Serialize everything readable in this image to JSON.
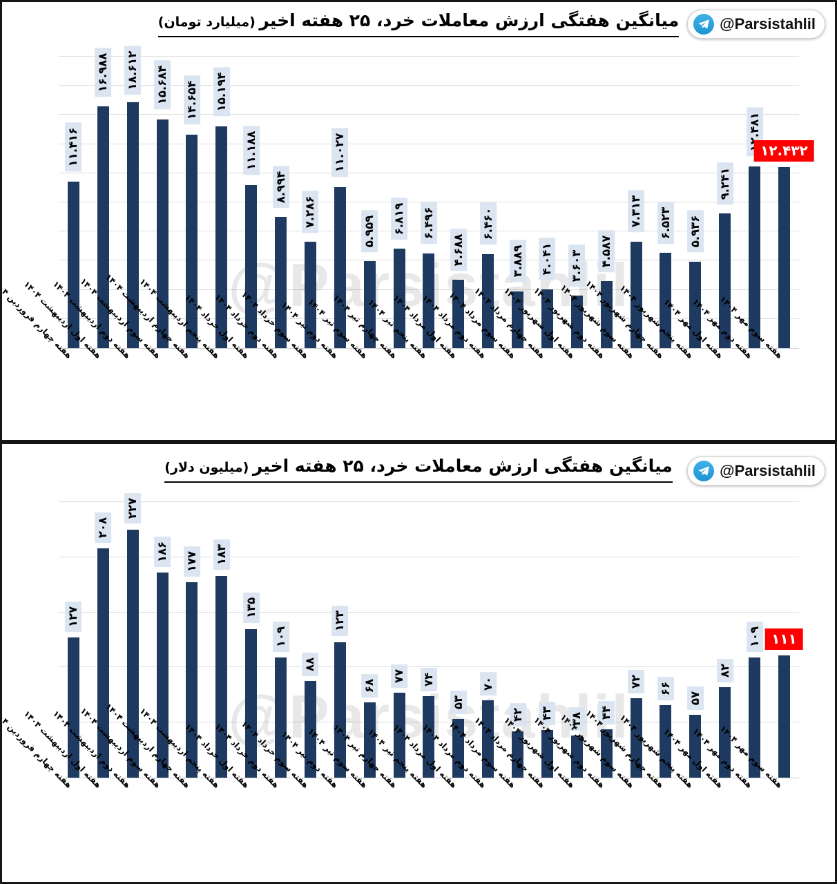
{
  "badge": {
    "handle": "@Parsistahlil",
    "icon": "telegram-icon"
  },
  "watermark": "@Parsistahlil",
  "colors": {
    "bar": "#1f3a60",
    "value_label_bg": "#dbe5f1",
    "highlight_bg": "#fe0000",
    "highlight_text": "#ffffff",
    "gridline": "#dcdcdc",
    "telegram_blue": "#2aabe2"
  },
  "chart_data": [
    {
      "type": "bar",
      "title": "میانگین هفتگی ارزش معاملات خرد، ۲۵ هفته اخیر",
      "unit_label": "(میلیارد تومان)",
      "ylabel": "",
      "xlabel": "",
      "ylim": [
        0,
        21000
      ],
      "grid_step": 2000,
      "grid": true,
      "legend_position": "none",
      "highlight_index": 24,
      "categories": [
        "هفته چهارم فروردین ۱۴۰۴",
        "هفته اول اردیبهشت ۱۴۰۴",
        "هفته دوم اردیبهشت ۱۴۰۴",
        "هفته سوم اردیبهشت ۱۴۰۴",
        "هفته چهارم اردیبهشت ۱۴۰۴",
        "هفته پنجم اردیبهشت ۱۴۰۴",
        "هفته اول خرداد ۱۴۰۴",
        "هفته دوم خرداد ۱۴۰۴",
        "هفته سوم خرداد ۱۴۰۴",
        "هفته دوم تیر ۱۴۰۴",
        "هفته سوم تیر ۱۴۰۴",
        "هفته چهارم تیر ۱۴۰۴",
        "هفته پنجم تیر ۱۴۰۴",
        "هفته اول مرداد ۱۴۰۴",
        "هفته دوم مرداد ۱۴۰۴",
        "هفته سوم مرداد ۱۴۰۴",
        "هفته چهارم مرداد ۱۴۰۴",
        "هفته اول شهریور ۱۴۰۴",
        "هفته دوم شهریور ۱۴۰۴",
        "هفته سوم شهریور ۱۴۰۴",
        "هفته چهارم شهریور ۱۴۰۴",
        "هفته پنجم شهریور ۱۴۰۴",
        "هفته اول مهر ۱۴۰۴",
        "هفته دوم مهر ۱۴۰۴",
        "هفته سوم مهر ۱۴۰۴"
      ],
      "values": [
        11416,
        16988,
        18612,
        15684,
        14654,
        15194,
        11188,
        8994,
        7286,
        11027,
        5959,
        6819,
        6496,
        4688,
        6460,
        3889,
        4041,
        3603,
        4587,
        7313,
        6523,
        5936,
        9241,
        12481,
        12432
      ],
      "value_labels": [
        "۱۱.۴۱۶",
        "۱۶.۹۸۸",
        "۱۸.۶۱۲",
        "۱۵.۶۸۴",
        "۱۴.۶۵۴",
        "۱۵.۱۹۴",
        "۱۱.۱۸۸",
        "۸.۹۹۴",
        "۷.۲۸۶",
        "۱۱.۰۲۷",
        "۵.۹۵۹",
        "۶.۸۱۹",
        "۶.۴۹۶",
        "۴.۶۸۸",
        "۶.۴۶۰",
        "۳.۸۸۹",
        "۴.۰۴۱",
        "۳.۶۰۳",
        "۴.۵۸۷",
        "۷.۳۱۳",
        "۶.۵۲۳",
        "۵.۹۳۶",
        "۹.۲۴۱",
        "۱۲.۴۸۱",
        "۱۲.۴۳۲"
      ]
    },
    {
      "type": "bar",
      "title": "میانگین هفتگی ارزش معاملات خرد، ۲۵ هفته اخیر",
      "unit_label": "(میلیون دلار)",
      "ylabel": "",
      "xlabel": "",
      "ylim": [
        0,
        260
      ],
      "grid_step": 50,
      "grid": true,
      "legend_position": "none",
      "highlight_index": 24,
      "categories": [
        "هفته چهارم فروردین ۱۴۰۴",
        "هفته اول اردیبهشت ۱۴۰۴",
        "هفته دوم اردیبهشت ۱۴۰۴",
        "هفته سوم اردیبهشت ۱۴۰۴",
        "هفته چهارم اردیبهشت ۱۴۰۴",
        "هفته پنجم اردیبهشت ۱۴۰۴",
        "هفته اول خرداد ۱۴۰۴",
        "هفته دوم خرداد ۱۴۰۴",
        "هفته سوم خرداد ۱۴۰۴",
        "هفته دوم تیر ۱۴۰۴",
        "هفته سوم تیر ۱۴۰۴",
        "هفته چهارم تیر ۱۴۰۴",
        "هفته پنجم تیر ۱۴۰۴",
        "هفته اول مرداد ۱۴۰۴",
        "هفته دوم مرداد ۱۴۰۴",
        "هفته سوم مرداد ۱۴۰۴",
        "هفته چهارم مرداد ۱۴۰۴",
        "هفته اول شهریور ۱۴۰۴",
        "هفته دوم شهریور ۱۴۰۴",
        "هفته سوم شهریور ۱۴۰۴",
        "هفته چهارم شهریور ۱۴۰۴",
        "هفته پنجم شهریور ۱۴۰۴",
        "هفته اول مهر ۱۴۰۴",
        "هفته دوم مهر ۱۴۰۴",
        "هفته سوم مهر ۱۴۰۴"
      ],
      "values": [
        127,
        208,
        227,
        186,
        177,
        183,
        135,
        109,
        88,
        123,
        68,
        77,
        74,
        53,
        70,
        42,
        43,
        38,
        44,
        72,
        66,
        57,
        82,
        109,
        111
      ],
      "value_labels": [
        "۱۲۷",
        "۲۰۸",
        "۲۲۷",
        "۱۸۶",
        "۱۷۷",
        "۱۸۳",
        "۱۳۵",
        "۱۰۹",
        "۸۸",
        "۱۲۳",
        "۶۸",
        "۷۷",
        "۷۴",
        "۵۳",
        "۷۰",
        "۴۲",
        "۴۳",
        "۳۸",
        "۴۴",
        "۷۲",
        "۶۶",
        "۵۷",
        "۸۲",
        "۱۰۹",
        "۱۱۱"
      ]
    }
  ]
}
